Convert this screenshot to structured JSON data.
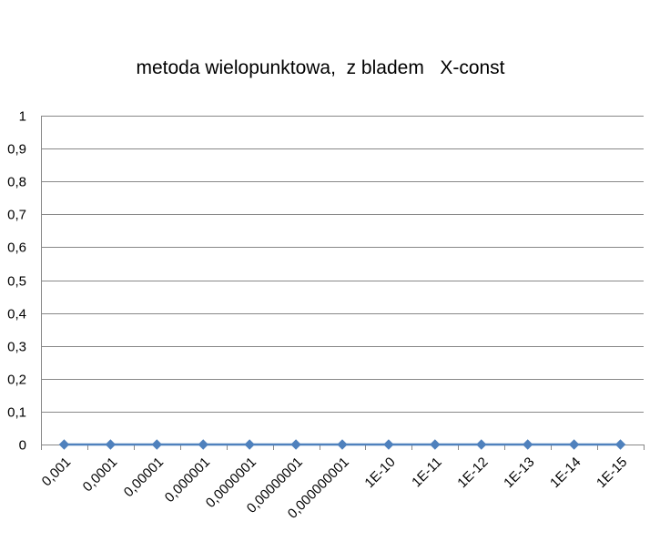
{
  "chart_data": {
    "type": "line",
    "title": "metoda wielopunktowa,  z bladem   X-const",
    "xlabel": "",
    "ylabel": "",
    "categories": [
      "0,001",
      "0,0001",
      "0,00001",
      "0,000001",
      "0,0000001",
      "0,00000001",
      "0,000000001",
      "1E-10",
      "1E-11",
      "1E-12",
      "1E-13",
      "1E-14",
      "1E-15"
    ],
    "series": [
      {
        "values": [
          0,
          0,
          0,
          0,
          0,
          0,
          0,
          0,
          0,
          0,
          0,
          0,
          0
        ]
      }
    ],
    "ylim": [
      0,
      1
    ],
    "yticks": [
      "0",
      "0,1",
      "0,2",
      "0,3",
      "0,4",
      "0,5",
      "0,6",
      "0,7",
      "0,8",
      "0,9",
      "1"
    ],
    "grid": true,
    "legend": "none",
    "colors": {
      "series": "#4f81bd",
      "grid": "#888888"
    }
  }
}
